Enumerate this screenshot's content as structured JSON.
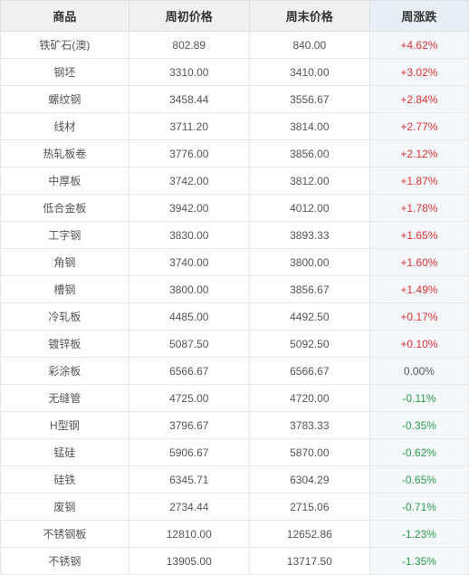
{
  "table": {
    "columns": [
      "商品",
      "周初价格",
      "周末价格",
      "周涨跌"
    ],
    "col_widths": [
      "25%",
      "25%",
      "25%",
      "25%"
    ],
    "header_bg": "#f0f0f0",
    "header_last_bg": "#e8eef5",
    "cell_last_bg": "#f5f8fb",
    "border_color": "#e8e8e8",
    "font_size_header": 13,
    "font_size_cell": 12,
    "pos_color": "#e03030",
    "neg_color": "#2a9d4a",
    "zero_color": "#555555",
    "rows": [
      {
        "name": "铁矿石(澳)",
        "start": "802.89",
        "end": "840.00",
        "change": "+4.62%",
        "dir": "pos"
      },
      {
        "name": "钢坯",
        "start": "3310.00",
        "end": "3410.00",
        "change": "+3.02%",
        "dir": "pos"
      },
      {
        "name": "螺纹钢",
        "start": "3458.44",
        "end": "3556.67",
        "change": "+2.84%",
        "dir": "pos"
      },
      {
        "name": "线材",
        "start": "3711.20",
        "end": "3814.00",
        "change": "+2.77%",
        "dir": "pos"
      },
      {
        "name": "热轧板卷",
        "start": "3776.00",
        "end": "3856.00",
        "change": "+2.12%",
        "dir": "pos"
      },
      {
        "name": "中厚板",
        "start": "3742.00",
        "end": "3812.00",
        "change": "+1.87%",
        "dir": "pos"
      },
      {
        "name": "低合金板",
        "start": "3942.00",
        "end": "4012.00",
        "change": "+1.78%",
        "dir": "pos"
      },
      {
        "name": "工字钢",
        "start": "3830.00",
        "end": "3893.33",
        "change": "+1.65%",
        "dir": "pos"
      },
      {
        "name": "角钢",
        "start": "3740.00",
        "end": "3800.00",
        "change": "+1.60%",
        "dir": "pos"
      },
      {
        "name": "槽钢",
        "start": "3800.00",
        "end": "3856.67",
        "change": "+1.49%",
        "dir": "pos"
      },
      {
        "name": "冷轧板",
        "start": "4485.00",
        "end": "4492.50",
        "change": "+0.17%",
        "dir": "pos"
      },
      {
        "name": "镀锌板",
        "start": "5087.50",
        "end": "5092.50",
        "change": "+0.10%",
        "dir": "pos"
      },
      {
        "name": "彩涂板",
        "start": "6566.67",
        "end": "6566.67",
        "change": "0.00%",
        "dir": "zero"
      },
      {
        "name": "无缝管",
        "start": "4725.00",
        "end": "4720.00",
        "change": "-0.11%",
        "dir": "neg"
      },
      {
        "name": "H型钢",
        "start": "3796.67",
        "end": "3783.33",
        "change": "-0.35%",
        "dir": "neg"
      },
      {
        "name": "锰硅",
        "start": "5906.67",
        "end": "5870.00",
        "change": "-0.62%",
        "dir": "neg"
      },
      {
        "name": "硅铁",
        "start": "6345.71",
        "end": "6304.29",
        "change": "-0.65%",
        "dir": "neg"
      },
      {
        "name": "废钢",
        "start": "2734.44",
        "end": "2715.06",
        "change": "-0.71%",
        "dir": "neg"
      },
      {
        "name": "不锈钢板",
        "start": "12810.00",
        "end": "12652.86",
        "change": "-1.23%",
        "dir": "neg"
      },
      {
        "name": "不锈钢",
        "start": "13905.00",
        "end": "13717.50",
        "change": "-1.35%",
        "dir": "neg"
      }
    ]
  }
}
